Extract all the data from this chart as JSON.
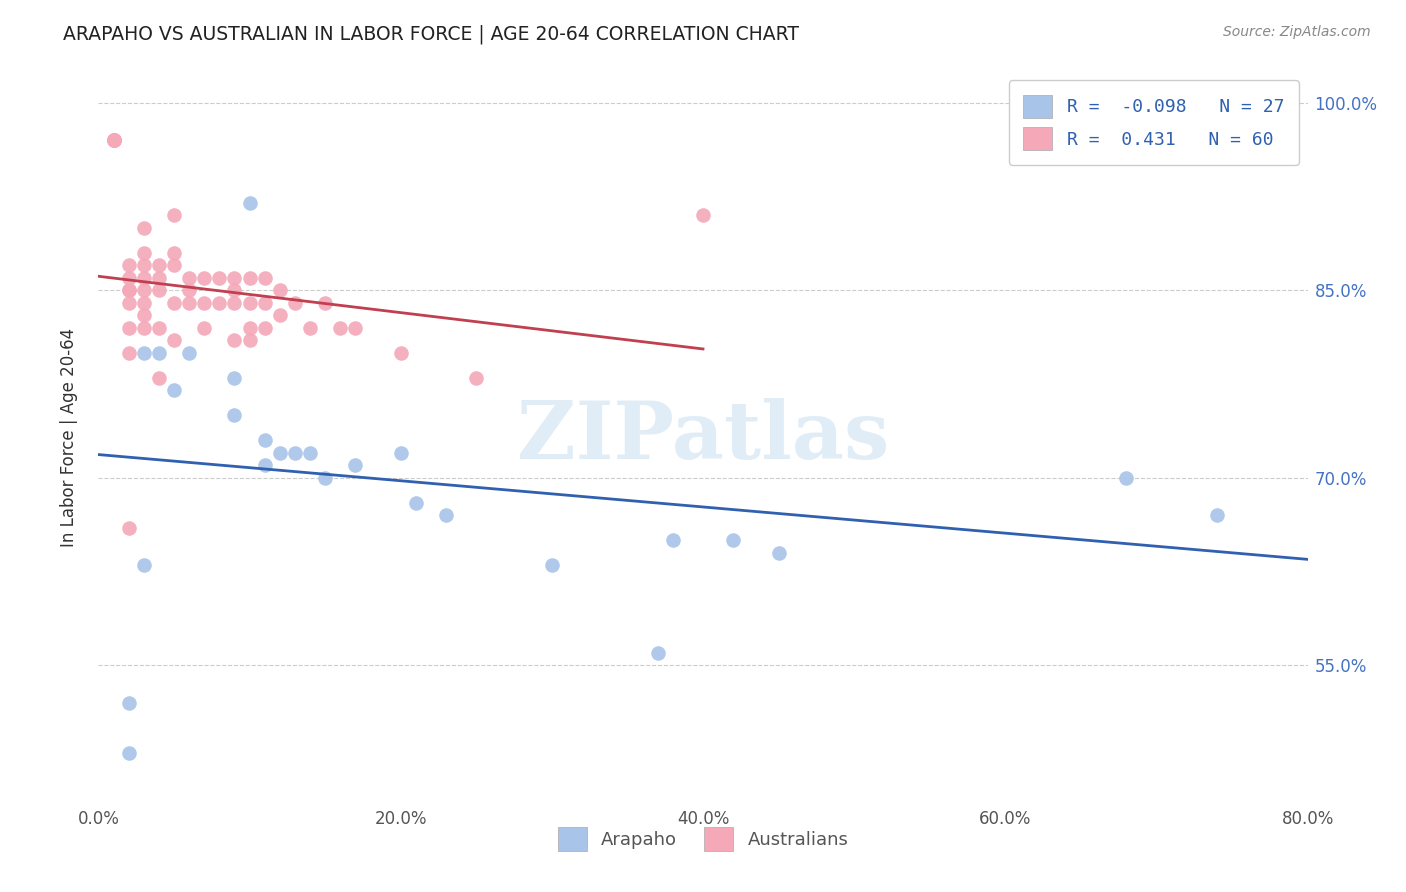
{
  "title": "ARAPAHO VS AUSTRALIAN IN LABOR FORCE | AGE 20-64 CORRELATION CHART",
  "source": "Source: ZipAtlas.com",
  "ylabel": "In Labor Force | Age 20-64",
  "xlim": [
    0.0,
    0.8
  ],
  "ylim": [
    0.44,
    1.025
  ],
  "ytick_labels": [
    "55.0%",
    "70.0%",
    "85.0%",
    "100.0%"
  ],
  "ytick_values": [
    0.55,
    0.7,
    0.85,
    1.0
  ],
  "xtick_labels": [
    "0.0%",
    "20.0%",
    "40.0%",
    "60.0%",
    "80.0%"
  ],
  "xtick_values": [
    0.0,
    0.2,
    0.4,
    0.6,
    0.8
  ],
  "arapaho_R": -0.098,
  "arapaho_N": 27,
  "australians_R": 0.431,
  "australians_N": 60,
  "arapaho_color": "#a8c4e8",
  "australians_color": "#f4a8b8",
  "arapaho_line_color": "#3060b0",
  "australians_line_color": "#c04050",
  "legend_R_color": "#3060b0",
  "watermark_text": "ZIPatlas",
  "arapaho_x": [
    0.02,
    0.02,
    0.03,
    0.04,
    0.05,
    0.06,
    0.09,
    0.09,
    0.1,
    0.11,
    0.11,
    0.12,
    0.13,
    0.14,
    0.15,
    0.17,
    0.2,
    0.21,
    0.23,
    0.3,
    0.37,
    0.38,
    0.42,
    0.45,
    0.68,
    0.74,
    0.03
  ],
  "arapaho_y": [
    0.52,
    0.48,
    0.8,
    0.8,
    0.77,
    0.8,
    0.78,
    0.75,
    0.92,
    0.71,
    0.73,
    0.72,
    0.72,
    0.72,
    0.7,
    0.71,
    0.72,
    0.68,
    0.67,
    0.63,
    0.56,
    0.65,
    0.65,
    0.64,
    0.7,
    0.67,
    0.63
  ],
  "australians_x": [
    0.01,
    0.01,
    0.01,
    0.01,
    0.01,
    0.02,
    0.02,
    0.02,
    0.02,
    0.02,
    0.02,
    0.02,
    0.02,
    0.03,
    0.03,
    0.03,
    0.03,
    0.03,
    0.03,
    0.03,
    0.03,
    0.04,
    0.04,
    0.04,
    0.04,
    0.04,
    0.05,
    0.05,
    0.05,
    0.05,
    0.05,
    0.06,
    0.06,
    0.06,
    0.07,
    0.07,
    0.07,
    0.08,
    0.08,
    0.09,
    0.09,
    0.09,
    0.09,
    0.1,
    0.1,
    0.1,
    0.1,
    0.11,
    0.11,
    0.11,
    0.12,
    0.12,
    0.13,
    0.14,
    0.15,
    0.16,
    0.17,
    0.2,
    0.25,
    0.4
  ],
  "australians_y": [
    0.97,
    0.97,
    0.97,
    0.97,
    0.97,
    0.82,
    0.84,
    0.85,
    0.85,
    0.86,
    0.87,
    0.8,
    0.66,
    0.82,
    0.83,
    0.84,
    0.85,
    0.86,
    0.87,
    0.88,
    0.9,
    0.78,
    0.82,
    0.85,
    0.86,
    0.87,
    0.81,
    0.84,
    0.87,
    0.88,
    0.91,
    0.84,
    0.85,
    0.86,
    0.82,
    0.84,
    0.86,
    0.84,
    0.86,
    0.81,
    0.84,
    0.85,
    0.86,
    0.81,
    0.82,
    0.84,
    0.86,
    0.82,
    0.84,
    0.86,
    0.83,
    0.85,
    0.84,
    0.82,
    0.84,
    0.82,
    0.82,
    0.8,
    0.78,
    0.91
  ],
  "arapaho_line_x": [
    0.0,
    0.8
  ],
  "australians_line_x": [
    0.0,
    0.4
  ]
}
